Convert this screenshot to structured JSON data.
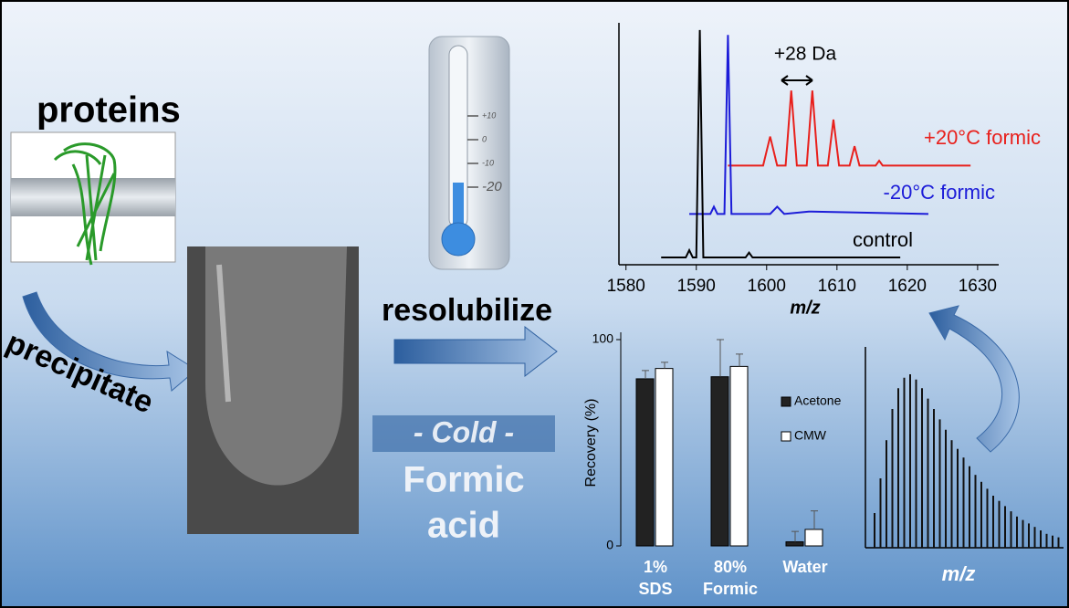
{
  "labels": {
    "proteins": "proteins",
    "precipitate": "precipitate",
    "resolubilize": "resolubilize",
    "cold": "- Cold -",
    "formic": "Formic",
    "acid": "acid"
  },
  "thermometer": {
    "ticks": [
      "+10",
      "0",
      "-10",
      "-20"
    ]
  },
  "chart_data": [
    {
      "type": "line",
      "xlabel": "m/z",
      "annotation": "+28 Da",
      "xlim": [
        1579,
        1633
      ],
      "ylim": [
        0,
        100
      ],
      "xticks": [
        1580,
        1590,
        1600,
        1610,
        1620,
        1630
      ],
      "series": [
        {
          "name": "+20°C formic",
          "color": "#e8201c",
          "x": [
            1594.5,
            1599.5,
            1600.5,
            1601.5,
            1602.7,
            1603.5,
            1604.3,
            1605.7,
            1606.5,
            1607.3,
            1608.7,
            1609.5,
            1610.3,
            1611.8,
            1612.5,
            1613.2,
            1615.5,
            1616,
            1616.5,
            1629
          ],
          "values": [
            41,
            41,
            53,
            41,
            41,
            72,
            41,
            41,
            72,
            41,
            41,
            60,
            41,
            41,
            49,
            41,
            41,
            43,
            41,
            41
          ]
        },
        {
          "name": "-20°C formic",
          "color": "#1c1cd8",
          "x": [
            1589,
            1592,
            1592.5,
            1593,
            1594,
            1594.5,
            1595,
            1600.5,
            1601.5,
            1602.5,
            1606,
            1623
          ],
          "values": [
            21,
            21,
            24,
            21,
            21,
            95,
            21,
            21,
            24,
            21,
            22,
            21
          ]
        },
        {
          "name": "control",
          "color": "#000000",
          "x": [
            1585,
            1588.5,
            1589,
            1589.5,
            1590,
            1590.5,
            1591,
            1592,
            1597,
            1597.5,
            1598,
            1603,
            1610,
            1619
          ],
          "values": [
            3,
            3,
            6,
            3,
            3,
            97,
            3,
            3,
            3,
            5,
            3,
            3,
            3,
            3
          ]
        }
      ]
    },
    {
      "type": "bar",
      "ylabel": "Recovery (%)",
      "ylim": [
        0,
        100
      ],
      "yticks": [
        0,
        100
      ],
      "categories": [
        [
          "1%",
          "SDS"
        ],
        [
          "80%",
          "Formic"
        ],
        [
          "Water"
        ]
      ],
      "series": [
        {
          "name": "Acetone",
          "color": "#222222",
          "values": [
            81,
            82,
            2
          ],
          "errors": [
            4,
            18,
            5
          ]
        },
        {
          "name": "CMW",
          "color": "#ffffff",
          "values": [
            86,
            87,
            8
          ],
          "errors": [
            3,
            6,
            9
          ]
        }
      ]
    },
    {
      "type": "stem",
      "xlabel": "m/z",
      "values": [
        20,
        40,
        62,
        80,
        92,
        98,
        100,
        97,
        92,
        86,
        80,
        74,
        68,
        62,
        57,
        52,
        47,
        42,
        38,
        34,
        30,
        27,
        24,
        21,
        18,
        16,
        14,
        12,
        10,
        8,
        7,
        6
      ]
    }
  ]
}
